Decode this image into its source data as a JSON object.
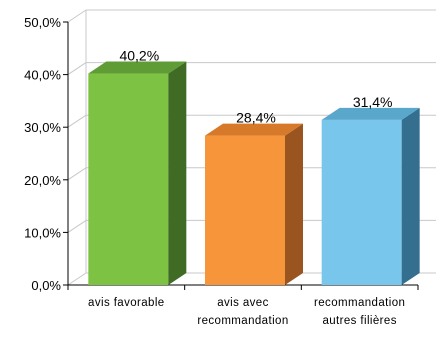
{
  "chart_data": {
    "type": "bar",
    "style": "3d",
    "categories": [
      [
        "avis favorable"
      ],
      [
        "avis avec",
        "recommandation"
      ],
      [
        "recommandation",
        "autres filières"
      ]
    ],
    "data_labels": [
      "40,2%",
      "28,4%",
      "31,4%"
    ],
    "values": [
      40.2,
      28.4,
      31.4
    ],
    "y_ticks": [
      "0,0%",
      "10,0%",
      "20,0%",
      "30,0%",
      "40,0%",
      "50,0%"
    ],
    "ylim": [
      0,
      50
    ],
    "grid": "horizontal",
    "colors": {
      "bars": [
        {
          "front": "#7dc242",
          "side": "#3f6b25",
          "top": "#5f9c35"
        },
        {
          "front": "#f7953a",
          "side": "#9a5420",
          "top": "#d67a2a"
        },
        {
          "front": "#79c6ed",
          "side": "#356f8f",
          "top": "#5aa7cc"
        }
      ],
      "grid": "#c8c8c8",
      "axis": "#000000",
      "text": "#000000"
    }
  }
}
